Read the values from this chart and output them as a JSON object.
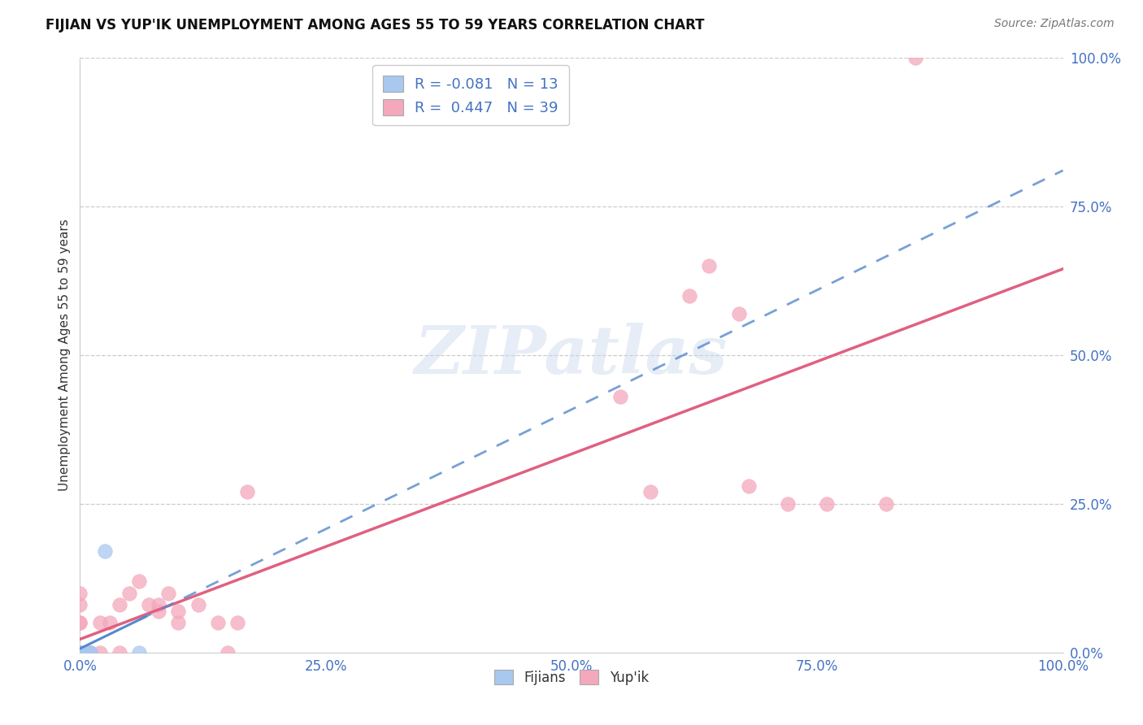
{
  "title": "FIJIAN VS YUP'IK UNEMPLOYMENT AMONG AGES 55 TO 59 YEARS CORRELATION CHART",
  "source": "Source: ZipAtlas.com",
  "ylabel": "Unemployment Among Ages 55 to 59 years",
  "fijian_R": -0.081,
  "fijian_N": 13,
  "yupik_R": 0.447,
  "yupik_N": 39,
  "fijian_color": "#A8C8F0",
  "yupik_color": "#F4A8BC",
  "fijian_line_color": "#5588CC",
  "yupik_line_color": "#E06080",
  "background_color": "#FFFFFF",
  "xlim": [
    0.0,
    1.0
  ],
  "ylim": [
    0.0,
    1.0
  ],
  "fijian_x": [
    0.0,
    0.0,
    0.0,
    0.0,
    0.0,
    0.0,
    0.0,
    0.0,
    0.0,
    0.01,
    0.01,
    0.025,
    0.06
  ],
  "fijian_y": [
    0.0,
    0.0,
    0.0,
    0.0,
    0.0,
    0.0,
    0.0,
    0.0,
    0.0,
    0.0,
    0.0,
    0.17,
    0.0
  ],
  "yupik_x": [
    0.0,
    0.0,
    0.0,
    0.0,
    0.0,
    0.0,
    0.0,
    0.0,
    0.01,
    0.01,
    0.01,
    0.02,
    0.02,
    0.03,
    0.04,
    0.04,
    0.05,
    0.06,
    0.07,
    0.08,
    0.08,
    0.09,
    0.1,
    0.1,
    0.12,
    0.14,
    0.15,
    0.16,
    0.17,
    0.55,
    0.58,
    0.62,
    0.64,
    0.67,
    0.68,
    0.72,
    0.76,
    0.82,
    0.85
  ],
  "yupik_y": [
    0.0,
    0.0,
    0.0,
    0.0,
    0.05,
    0.05,
    0.08,
    0.1,
    0.0,
    0.0,
    0.0,
    0.0,
    0.05,
    0.05,
    0.0,
    0.08,
    0.1,
    0.12,
    0.08,
    0.07,
    0.08,
    0.1,
    0.05,
    0.07,
    0.08,
    0.05,
    0.0,
    0.05,
    0.27,
    0.43,
    0.27,
    0.6,
    0.65,
    0.57,
    0.28,
    0.25,
    0.25,
    0.25,
    1.0
  ]
}
